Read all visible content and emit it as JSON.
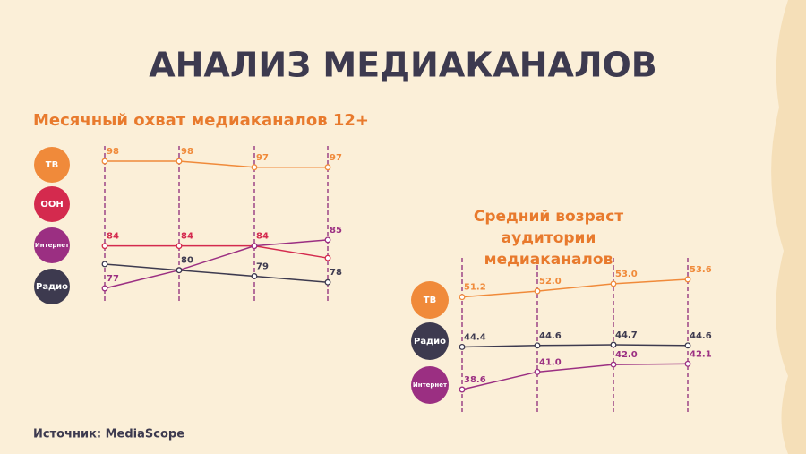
{
  "title": "АНАЛИЗ МЕДИАКАНАЛОВ",
  "source": "Источник: MediaScope",
  "chart_data": [
    {
      "type": "line",
      "title": "Месячный охват медиаканалов 12+",
      "categories": [
        null,
        null,
        null,
        null
      ],
      "series": [
        {
          "name": "ТВ",
          "color": "#f08a3a",
          "values": [
            98,
            98,
            97,
            97
          ],
          "value_labels": [
            "98",
            "98",
            "97",
            "97"
          ]
        },
        {
          "name": "ООН",
          "color": "#d42a4e",
          "values": [
            84,
            84,
            84,
            82
          ],
          "value_labels": [
            "84",
            "84",
            "84",
            null
          ]
        },
        {
          "name": "Интернет",
          "color": "#9b2f82",
          "values": [
            77,
            80,
            84,
            85
          ],
          "value_labels": [
            "77",
            null,
            null,
            "85"
          ]
        },
        {
          "name": "Радио",
          "color": "#3d3a4f",
          "values": [
            81,
            80,
            79,
            78
          ],
          "value_labels": [
            null,
            "80",
            "79",
            "78"
          ]
        }
      ]
    },
    {
      "type": "line",
      "title": "Средний возраст аудитории медиаканалов",
      "categories": [
        null,
        null,
        null,
        null
      ],
      "series": [
        {
          "name": "ТВ",
          "color": "#f08a3a",
          "values": [
            51.2,
            52.0,
            53.0,
            53.6
          ],
          "value_labels": [
            "51.2",
            "52.0",
            "53.0",
            "53.6"
          ]
        },
        {
          "name": "Радио",
          "color": "#3d3a4f",
          "values": [
            44.4,
            44.6,
            44.7,
            44.6
          ],
          "value_labels": [
            "44.4",
            "44.6",
            "44.7",
            "44.6"
          ]
        },
        {
          "name": "Интернет",
          "color": "#9b2f82",
          "values": [
            38.6,
            41.0,
            42.0,
            42.1
          ],
          "value_labels": [
            "38.6",
            "41.0",
            "42.0",
            "42.1"
          ]
        }
      ]
    }
  ]
}
